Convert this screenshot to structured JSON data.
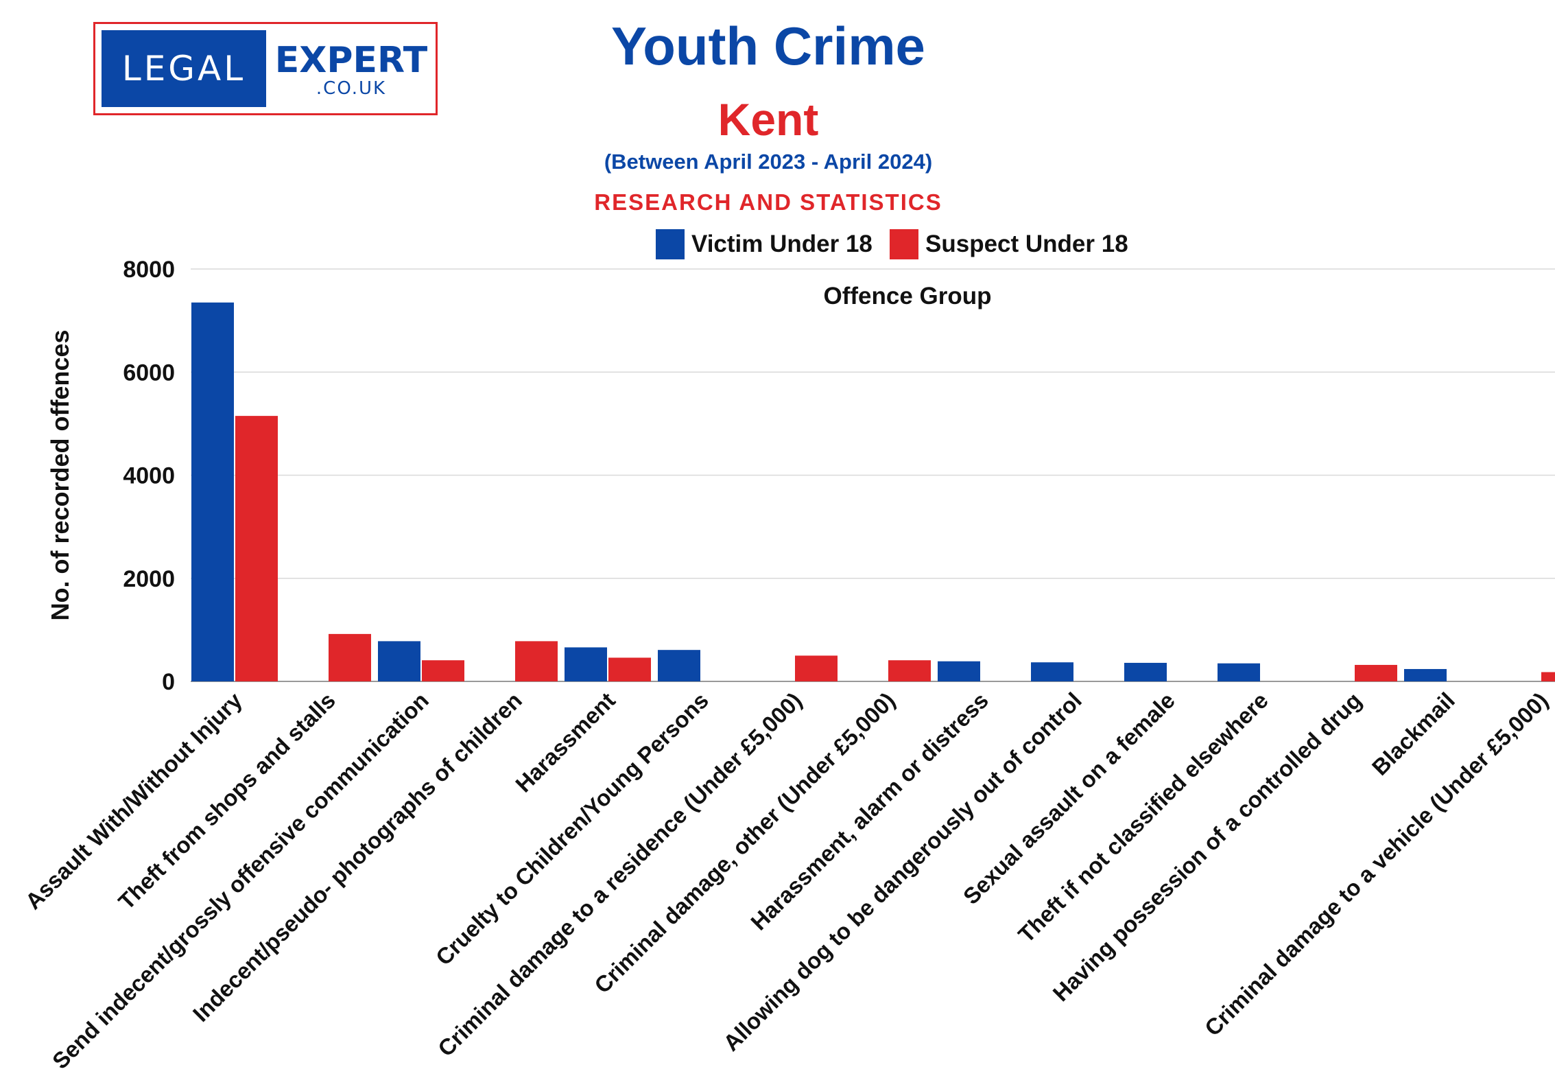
{
  "logo": {
    "left_text": "LEGAL",
    "right_text": "EXPERT",
    "domain_text": ".CO.UK"
  },
  "header": {
    "title": "Youth Crime",
    "region": "Kent",
    "period": "(Between April 2023 - April 2024)",
    "tagline": "RESEARCH AND STATISTICS"
  },
  "colors": {
    "victim": "#0b47a6",
    "suspect": "#e0262a",
    "grid": "#d9d9d9",
    "text": "#111111"
  },
  "chart_data": {
    "type": "bar",
    "title": "Offence Group",
    "xlabel": "",
    "ylabel": "No. of recorded offences",
    "ylim": [
      0,
      8000
    ],
    "yticks": [
      0,
      2000,
      4000,
      6000,
      8000
    ],
    "grid": true,
    "legend": "top-center",
    "categories": [
      "Assault With/Without Injury",
      "Theft from shops and stalls",
      "Send indecent/grossly offensive communication",
      "Indecent/pseudo- photographs of children",
      "Harassment",
      "Cruelty to Children/Young Persons",
      "Criminal damage to a residence (Under £5,000)",
      "Criminal damage, other (Under £5,000)",
      "Harassment, alarm or distress",
      "Allowing dog to be dangerously out of control",
      "Sexual assault on a female",
      "Theft if not classified elsewhere",
      "Having possession of a controlled drug",
      "Blackmail",
      "Criminal damage to a vehicle (Under £5,000)"
    ],
    "series": [
      {
        "name": "Victim Under 18",
        "values": [
          7350,
          null,
          780,
          null,
          660,
          610,
          null,
          null,
          390,
          370,
          360,
          350,
          null,
          240,
          null
        ]
      },
      {
        "name": "Suspect Under 18",
        "values": [
          5150,
          920,
          410,
          780,
          460,
          null,
          500,
          410,
          null,
          null,
          null,
          null,
          320,
          null,
          180
        ]
      }
    ]
  }
}
